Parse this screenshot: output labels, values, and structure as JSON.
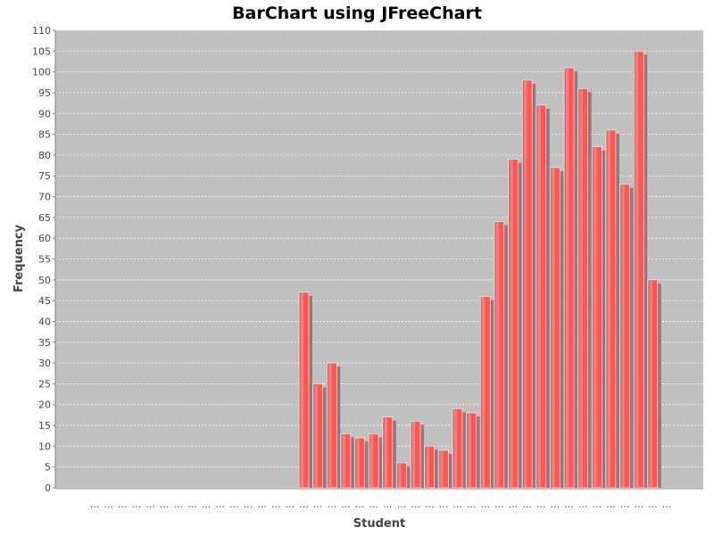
{
  "chart_data": {
    "type": "bar",
    "title": "BarChart using JFreeChart",
    "xlabel": "Student",
    "ylabel": "Frequency",
    "ylim": [
      0,
      110
    ],
    "ytick_step": 5,
    "yticks": [
      "0",
      "5",
      "10",
      "15",
      "20",
      "25",
      "30",
      "35",
      "40",
      "45",
      "50",
      "55",
      "60",
      "65",
      "70",
      "75",
      "80",
      "85",
      "90",
      "95",
      "100",
      "105",
      "110"
    ],
    "category_label": "...",
    "categories": [
      "...",
      "...",
      "...",
      "...",
      "...",
      "...",
      "...",
      "...",
      "...",
      "...",
      "...",
      "...",
      "...",
      "...",
      "...",
      "...",
      "...",
      "...",
      "...",
      "...",
      "...",
      "...",
      "...",
      "...",
      "...",
      "...",
      "...",
      "...",
      "...",
      "...",
      "...",
      "...",
      "...",
      "...",
      "...",
      "...",
      "...",
      "...",
      "...",
      "...",
      "...",
      "..."
    ],
    "values": [
      0,
      0,
      0,
      0,
      0,
      0,
      0,
      0,
      0,
      0,
      0,
      0,
      0,
      0,
      0,
      47,
      25,
      30,
      13,
      12,
      13,
      17,
      6,
      16,
      10,
      9,
      19,
      18,
      46,
      64,
      79,
      98,
      92,
      77,
      101,
      96,
      82,
      86,
      73,
      105,
      50,
      0
    ],
    "grid": true,
    "colors": {
      "plot_background": "#c0c0c0",
      "bar": "#ff5555",
      "bar_highlight": "#ff8a8a",
      "bar_shadow": "#808080",
      "gridline": "#ffffff",
      "axis": "#808080"
    }
  }
}
